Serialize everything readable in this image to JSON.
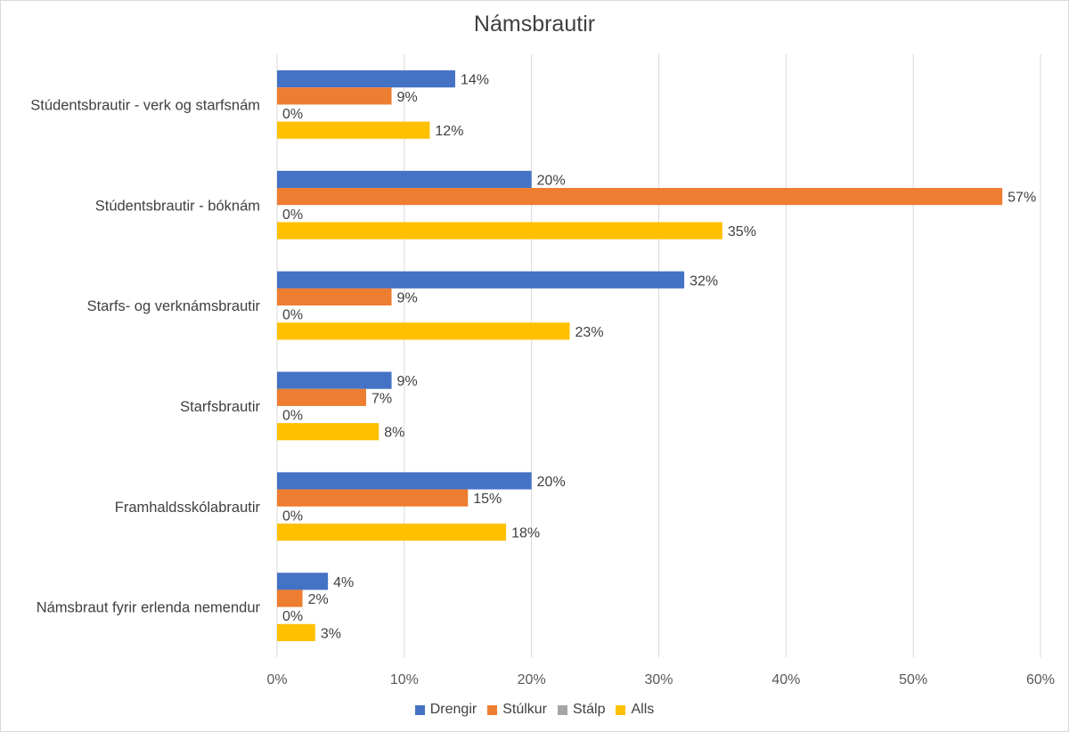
{
  "chart_data": {
    "type": "bar",
    "orientation": "horizontal",
    "title": "Námsbrautir",
    "categories": [
      "Stúdentsbrautir - verk og starfsnám",
      "Stúdentsbrautir - bóknám",
      "Starfs- og verknámsbrautir",
      "Starfsbrautir",
      "Framhaldsskólabrautir",
      "Námsbraut fyrir erlenda nemendur"
    ],
    "series": [
      {
        "name": "Drengir",
        "color": "#4472C4",
        "values": [
          14,
          20,
          32,
          9,
          20,
          4
        ],
        "labels": [
          "14%",
          "20%",
          "32%",
          "9%",
          "20%",
          "4%"
        ]
      },
      {
        "name": "Stúlkur",
        "color": "#ED7D31",
        "values": [
          9,
          57,
          9,
          7,
          15,
          2
        ],
        "labels": [
          "9%",
          "57%",
          "9%",
          "7%",
          "15%",
          "2%"
        ]
      },
      {
        "name": "Stálp",
        "color": "#A5A5A5",
        "values": [
          0,
          0,
          0,
          0,
          0,
          0
        ],
        "labels": [
          "0%",
          "0%",
          "0%",
          "0%",
          "0%",
          "0%"
        ]
      },
      {
        "name": "Alls",
        "color": "#FFC000",
        "values": [
          12,
          35,
          23,
          8,
          18,
          3
        ],
        "labels": [
          "12%",
          "35%",
          "23%",
          "8%",
          "18%",
          "3%"
        ]
      }
    ],
    "xlim": [
      0,
      60
    ],
    "ticks": [
      0,
      10,
      20,
      30,
      40,
      50,
      60
    ],
    "tick_labels": [
      "0%",
      "10%",
      "20%",
      "30%",
      "40%",
      "50%",
      "60%"
    ],
    "grid": true,
    "legend_position": "bottom"
  }
}
